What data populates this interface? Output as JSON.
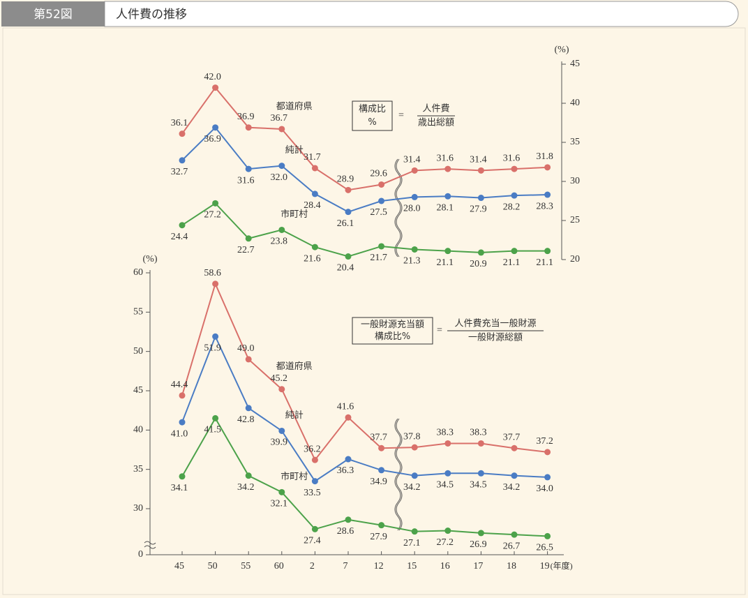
{
  "header": {
    "figure_no": "第52図",
    "title": "人件費の推移"
  },
  "chart_data": [
    {
      "type": "line",
      "yaxis": "right",
      "y_unit": "(%)",
      "ylim": [
        20,
        45
      ],
      "yticks": [
        20,
        25,
        30,
        35,
        40,
        45
      ],
      "formula": {
        "lhs": [
          "構成比",
          "%"
        ],
        "eq": "=",
        "numerator": "人件費",
        "denominator": "歳出総額"
      },
      "series": [
        {
          "name": "都道府県",
          "color": "#d9706a",
          "values": [
            36.1,
            42.0,
            36.9,
            36.7,
            31.7,
            28.9,
            29.6,
            31.4,
            31.6,
            31.4,
            31.6,
            31.8
          ],
          "value_labels": [
            "36.1",
            "42.0",
            "36.9",
            "36.7",
            "31.7",
            "28.9",
            "29.6",
            "31.4",
            "31.6",
            "31.4",
            "31.6",
            "31.8"
          ]
        },
        {
          "name": "純計",
          "color": "#4a7cc4",
          "values": [
            32.7,
            36.9,
            31.6,
            32.0,
            28.4,
            26.1,
            27.5,
            28.0,
            28.1,
            27.9,
            28.2,
            28.3
          ],
          "value_labels": [
            "32.7",
            "36.9",
            "31.6",
            "32.0",
            "28.4",
            "26.1",
            "27.5",
            "28.0",
            "28.1",
            "27.9",
            "28.2",
            "28.3"
          ]
        },
        {
          "name": "市町村",
          "color": "#4ca24a",
          "values": [
            24.4,
            27.2,
            22.7,
            23.8,
            21.6,
            20.4,
            21.7,
            21.3,
            21.1,
            20.9,
            21.1,
            21.1
          ],
          "value_labels": [
            "24.4",
            "27.2",
            "22.7",
            "23.8",
            "21.6",
            "20.4",
            "21.7",
            "21.3",
            "21.1",
            "20.9",
            "21.1",
            "21.1"
          ]
        }
      ]
    },
    {
      "type": "line",
      "yaxis": "left",
      "y_unit": "(%)",
      "x_unit": "(年度)",
      "axis_break": true,
      "categories": [
        "45",
        "50",
        "55",
        "60",
        "2",
        "7",
        "12",
        "15",
        "16",
        "17",
        "18",
        "19"
      ],
      "ylim": [
        0,
        60
      ],
      "yticks": [
        0,
        30,
        35,
        40,
        45,
        50,
        55,
        60
      ],
      "formula": {
        "lhs": [
          "一般財源充当額",
          "構成比%"
        ],
        "eq": "=",
        "numerator": "人件費充当一般財源",
        "denominator": "一般財源総額"
      },
      "series": [
        {
          "name": "都道府県",
          "color": "#d9706a",
          "values": [
            44.4,
            58.6,
            49.0,
            45.2,
            36.2,
            41.6,
            37.7,
            37.8,
            38.3,
            38.3,
            37.7,
            37.2
          ],
          "value_labels": [
            "44.4",
            "58.6",
            "49.0",
            "45.2",
            "36.2",
            "41.6",
            "37.7",
            "37.8",
            "38.3",
            "38.3",
            "37.7",
            "37.2"
          ]
        },
        {
          "name": "純計",
          "color": "#4a7cc4",
          "values": [
            41.0,
            51.9,
            42.8,
            39.9,
            33.5,
            36.3,
            34.9,
            34.2,
            34.5,
            34.5,
            34.2,
            34.0
          ],
          "value_labels": [
            "41.0",
            "51.9",
            "42.8",
            "39.9",
            "33.5",
            "36.3",
            "34.9",
            "34.2",
            "34.5",
            "34.5",
            "34.2",
            "34.0"
          ]
        },
        {
          "name": "市町村",
          "color": "#4ca24a",
          "values": [
            34.1,
            41.5,
            34.2,
            32.1,
            27.4,
            28.6,
            27.9,
            27.1,
            27.2,
            26.9,
            26.7,
            26.5
          ],
          "value_labels": [
            "34.1",
            "41.5",
            "34.2",
            "32.1",
            "27.4",
            "28.6",
            "27.9",
            "27.1",
            "27.2",
            "26.9",
            "26.7",
            "26.5"
          ]
        }
      ]
    }
  ]
}
